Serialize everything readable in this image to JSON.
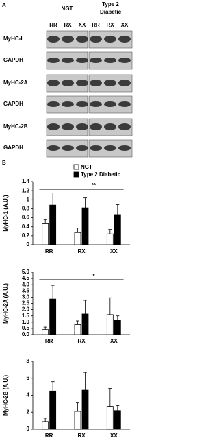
{
  "panel_a": {
    "label": "A",
    "groups": [
      {
        "name": [
          "NGT"
        ],
        "lanes": [
          "RR",
          "RX",
          "XX"
        ]
      },
      {
        "name": [
          "Type 2",
          "Diabetic"
        ],
        "lanes": [
          "RR",
          "RX",
          "XX"
        ]
      }
    ],
    "rows": [
      "MyHC-I",
      "GAPDH",
      "MyHC-2A",
      "GAPDH",
      "MyHC-2B",
      "GAPDH"
    ]
  },
  "panel_b_label": "B",
  "chart_data": [
    {
      "type": "bar",
      "y_label": "MyHC-1 (A.U.)",
      "categories": [
        "RR",
        "RX",
        "XX"
      ],
      "significance": "**",
      "ylim": [
        0,
        1.4
      ],
      "yticks": [
        0,
        0.2,
        0.4,
        0.6,
        0.8,
        1,
        1.2,
        1.4
      ],
      "series": [
        {
          "name": "NGT",
          "color": "#ffffff",
          "values": [
            0.48,
            0.27,
            0.24
          ],
          "errors": [
            0.08,
            0.1,
            0.1
          ]
        },
        {
          "name": "Type 2 Diabetic",
          "color": "#000000",
          "values": [
            0.88,
            0.82,
            0.67
          ],
          "errors": [
            0.27,
            0.22,
            0.22
          ]
        }
      ]
    },
    {
      "type": "bar",
      "y_label": "MyHC-2A (A.U.)",
      "categories": [
        "RR",
        "RX",
        "XX"
      ],
      "significance": "*",
      "ylim": [
        0,
        5
      ],
      "yticks": [
        {
          "value": 0,
          "label": "0.0"
        },
        {
          "value": 0.5,
          "label": "0.5"
        },
        {
          "value": 1,
          "label": "1.0"
        },
        {
          "value": 1.5,
          "label": "1.5"
        },
        {
          "value": 2,
          "label": "2.0"
        },
        {
          "value": 2.5,
          "label": "2.5"
        },
        {
          "value": 3,
          "label": "3.0"
        },
        {
          "value": 3.5,
          "label": "3.5"
        },
        {
          "value": 4,
          "label": "4.0"
        },
        {
          "value": 4.5,
          "label": "4.5"
        },
        {
          "value": 5,
          "label": "5.0"
        }
      ],
      "series": [
        {
          "name": "NGT",
          "color": "#ffffff",
          "values": [
            0.4,
            0.8,
            1.6
          ],
          "errors": [
            0.2,
            0.3,
            1.35
          ]
        },
        {
          "name": "Type 2 Diabetic",
          "color": "#000000",
          "values": [
            2.85,
            1.65,
            1.15
          ],
          "errors": [
            1.1,
            1.1,
            0.35
          ]
        }
      ]
    },
    {
      "type": "bar",
      "y_label": "MyHC-2B (A.U.)",
      "categories": [
        "RR",
        "RX",
        "XX"
      ],
      "ylim": [
        0,
        8
      ],
      "yticks": [
        0,
        2,
        4,
        6,
        8
      ],
      "series": [
        {
          "name": "NGT",
          "color": "#ffffff",
          "values": [
            0.9,
            2.1,
            2.7
          ],
          "errors": [
            0.4,
            1.0,
            2.1
          ]
        },
        {
          "name": "Type 2 Diabetic",
          "color": "#000000",
          "values": [
            4.5,
            4.6,
            2.2
          ],
          "errors": [
            1.1,
            2.1,
            0.6
          ]
        }
      ]
    }
  ]
}
